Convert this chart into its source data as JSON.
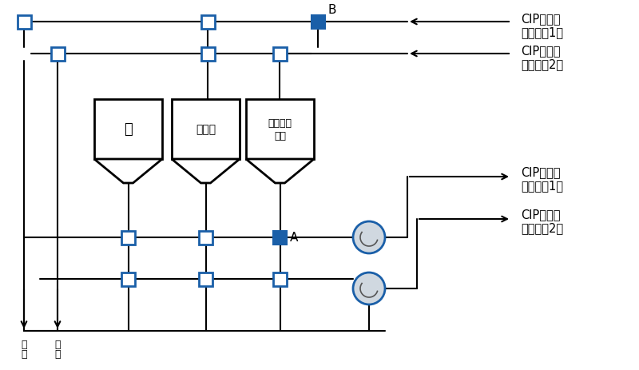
{
  "bg_color": "#ffffff",
  "blue_fill": "#1a5fa8",
  "blue_border": "#1a5fa8",
  "black_line": "#000000",
  "pump_color": "#d0d8e0",
  "tank_label_1": "水",
  "tank_label_2": "酸原液",
  "tank_label_3": "アルカリ\n原液",
  "label_A": "A",
  "label_B": "B",
  "label_haisu1": "廃\n水",
  "label_haisu2": "廃\n水",
  "cip_line1": "CIP液戻り（ライン1）",
  "cip_line2": "CIP液戻り（ライン2）",
  "cip_line3": "CIP液送り（ライン1）",
  "cip_line4": "CIP液送り（ライン2）"
}
